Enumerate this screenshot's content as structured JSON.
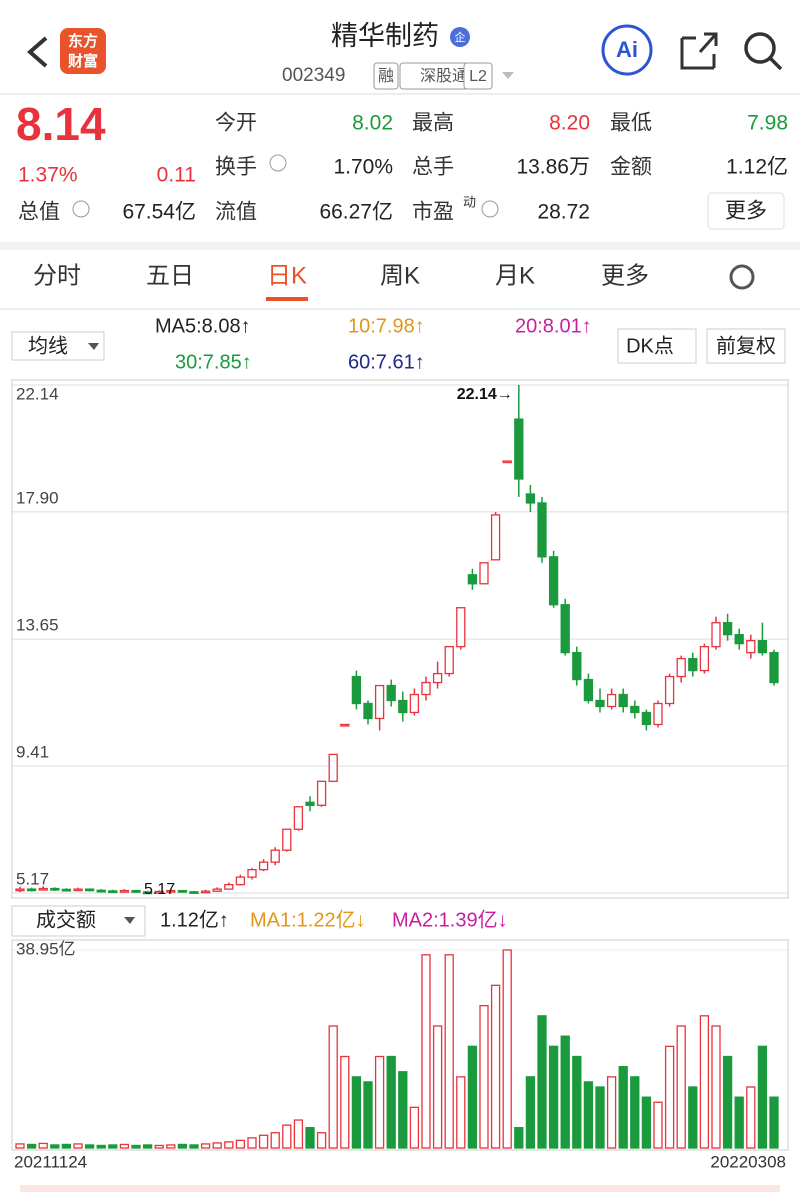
{
  "header": {
    "title": "精华制药",
    "badge": "企",
    "code": "002349",
    "tags": [
      "融",
      "深股通",
      "L2"
    ],
    "logo": [
      "东方",
      "财富"
    ]
  },
  "quote": {
    "price": "8.14",
    "change_pct": "1.37%",
    "change": "0.11",
    "stats": [
      {
        "label": "今开",
        "value": "8.02"
      },
      {
        "label": "最高",
        "value": "8.20"
      },
      {
        "label": "最低",
        "value": "7.98"
      },
      {
        "label": "换手",
        "value": "1.70%"
      },
      {
        "label": "总手",
        "value": "13.86万"
      },
      {
        "label": "金额",
        "value": "1.12亿"
      },
      {
        "label": "流值",
        "value": "66.27亿"
      },
      {
        "label": "市盈",
        "value": "28.72"
      }
    ],
    "total": {
      "label": "总值",
      "value": "67.54亿"
    },
    "pe_sup": "动",
    "more": "更多"
  },
  "tabs": [
    "分时",
    "五日",
    "日K",
    "周K",
    "月K",
    "更多"
  ],
  "toolbar": {
    "dropdown": "均线",
    "ma": [
      "MA5:8.08↑",
      "10:7.98↑",
      "20:8.01↑",
      "30:7.85↑",
      "60:7.61↑"
    ],
    "buttons": [
      "DK点",
      "前复权"
    ]
  },
  "volume_bar": {
    "dropdown": "成交额",
    "items": [
      "1.12亿↑",
      "MA1:1.22亿↓",
      "MA2:1.39亿↓"
    ]
  },
  "chart_data": {
    "type": "candlestick",
    "ylim": [
      5.17,
      22.14
    ],
    "yticks": [
      22.14,
      {
        "value": 17.9,
        "label": "17.90"
      },
      13.65,
      9.41,
      5.17
    ],
    "annotations": [
      {
        "text": "22.14→",
        "value": 22.14
      },
      {
        "text": "5.17",
        "value": 5.17
      }
    ],
    "candles": [
      [
        5.25,
        5.38,
        5.2,
        5.3
      ],
      [
        5.3,
        5.35,
        5.22,
        5.28
      ],
      [
        5.28,
        5.4,
        5.25,
        5.32
      ],
      [
        5.32,
        5.36,
        5.24,
        5.29
      ],
      [
        5.29,
        5.33,
        5.22,
        5.27
      ],
      [
        5.27,
        5.35,
        5.24,
        5.3
      ],
      [
        5.3,
        5.32,
        5.22,
        5.26
      ],
      [
        5.26,
        5.3,
        5.2,
        5.24
      ],
      [
        5.24,
        5.28,
        5.18,
        5.22
      ],
      [
        5.22,
        5.3,
        5.2,
        5.25
      ],
      [
        5.25,
        5.27,
        5.17,
        5.2
      ],
      [
        5.2,
        5.24,
        5.17,
        5.18
      ],
      [
        5.18,
        5.26,
        5.17,
        5.22
      ],
      [
        5.22,
        5.3,
        5.2,
        5.25
      ],
      [
        5.25,
        5.27,
        5.18,
        5.21
      ],
      [
        5.21,
        5.24,
        5.17,
        5.19
      ],
      [
        5.19,
        5.28,
        5.18,
        5.23
      ],
      [
        5.23,
        5.36,
        5.21,
        5.3
      ],
      [
        5.3,
        5.52,
        5.28,
        5.45
      ],
      [
        5.45,
        5.78,
        5.42,
        5.7
      ],
      [
        5.7,
        6.0,
        5.62,
        5.95
      ],
      [
        5.95,
        6.3,
        5.9,
        6.2
      ],
      [
        6.2,
        6.7,
        6.1,
        6.6
      ],
      [
        6.6,
        7.3,
        6.55,
        7.3
      ],
      [
        7.3,
        8.05,
        7.25,
        8.05
      ],
      [
        8.2,
        8.4,
        7.9,
        8.1
      ],
      [
        8.1,
        8.9,
        8.05,
        8.9
      ],
      [
        8.9,
        9.8,
        8.9,
        9.8
      ],
      [
        10.78,
        10.8,
        10.78,
        10.8
      ],
      [
        12.4,
        12.6,
        11.3,
        11.5
      ],
      [
        11.5,
        11.6,
        10.8,
        11.0
      ],
      [
        11.0,
        12.1,
        10.6,
        12.1
      ],
      [
        12.1,
        12.3,
        11.4,
        11.6
      ],
      [
        11.6,
        11.9,
        10.9,
        11.2
      ],
      [
        11.2,
        12.0,
        11.1,
        11.8
      ],
      [
        11.8,
        12.4,
        11.6,
        12.2
      ],
      [
        12.2,
        12.9,
        12.0,
        12.5
      ],
      [
        12.5,
        13.4,
        12.4,
        13.4
      ],
      [
        13.4,
        14.7,
        13.3,
        14.7
      ],
      [
        15.8,
        16.0,
        15.3,
        15.5
      ],
      [
        15.5,
        16.2,
        15.5,
        16.2
      ],
      [
        16.3,
        17.9,
        16.3,
        17.8
      ],
      [
        19.6,
        19.6,
        19.6,
        19.6
      ],
      [
        21.0,
        22.14,
        18.4,
        19.0
      ],
      [
        18.5,
        18.8,
        17.9,
        18.2
      ],
      [
        18.2,
        18.4,
        16.2,
        16.4
      ],
      [
        16.4,
        16.6,
        14.7,
        14.8
      ],
      [
        14.8,
        15.0,
        13.1,
        13.2
      ],
      [
        13.2,
        13.4,
        12.1,
        12.3
      ],
      [
        12.3,
        12.5,
        11.5,
        11.6
      ],
      [
        11.6,
        12.0,
        11.2,
        11.4
      ],
      [
        11.4,
        12.0,
        11.3,
        11.8
      ],
      [
        11.8,
        12.0,
        11.2,
        11.4
      ],
      [
        11.4,
        11.6,
        11.0,
        11.2
      ],
      [
        11.2,
        11.3,
        10.6,
        10.8
      ],
      [
        10.8,
        11.6,
        10.7,
        11.5
      ],
      [
        11.5,
        12.5,
        11.4,
        12.4
      ],
      [
        12.4,
        13.1,
        12.2,
        13.0
      ],
      [
        13.0,
        13.2,
        12.4,
        12.6
      ],
      [
        12.6,
        13.5,
        12.5,
        13.4
      ],
      [
        13.4,
        14.4,
        13.3,
        14.2
      ],
      [
        14.2,
        14.5,
        13.6,
        13.8
      ],
      [
        13.8,
        14.0,
        13.3,
        13.5
      ],
      [
        13.2,
        13.8,
        13.0,
        13.6
      ],
      [
        13.6,
        14.2,
        13.1,
        13.2
      ],
      [
        13.2,
        13.3,
        12.1,
        12.2
      ]
    ],
    "volume": {
      "ylim": [
        0,
        38.95
      ],
      "yticks": [
        {
          "value": 38.95,
          "label": "38.95亿"
        }
      ],
      "values": [
        0.8,
        0.7,
        0.9,
        0.6,
        0.7,
        0.8,
        0.6,
        0.5,
        0.6,
        0.7,
        0.5,
        0.6,
        0.5,
        0.6,
        0.7,
        0.6,
        0.8,
        1.0,
        1.2,
        1.5,
        2.0,
        2.5,
        3.0,
        4.5,
        5.5,
        4.0,
        3.0,
        24.0,
        18.0,
        14.0,
        13.0,
        18.0,
        18.0,
        15.0,
        8.0,
        38.0,
        24.0,
        38.0,
        14.0,
        20.0,
        28.0,
        32.0,
        38.95,
        4.0,
        14.0,
        26.0,
        20.0,
        22.0,
        18.0,
        13.0,
        12.0,
        14.0,
        16.0,
        14.0,
        10.0,
        9.0,
        20.0,
        24.0,
        12.0,
        26.0,
        24.0,
        18.0,
        10.0,
        12.0,
        20.0,
        10.0
      ]
    },
    "x_labels": [
      "20211124",
      "20220308"
    ],
    "up_color": "#e8323c",
    "down_color": "#1a9a3c"
  }
}
